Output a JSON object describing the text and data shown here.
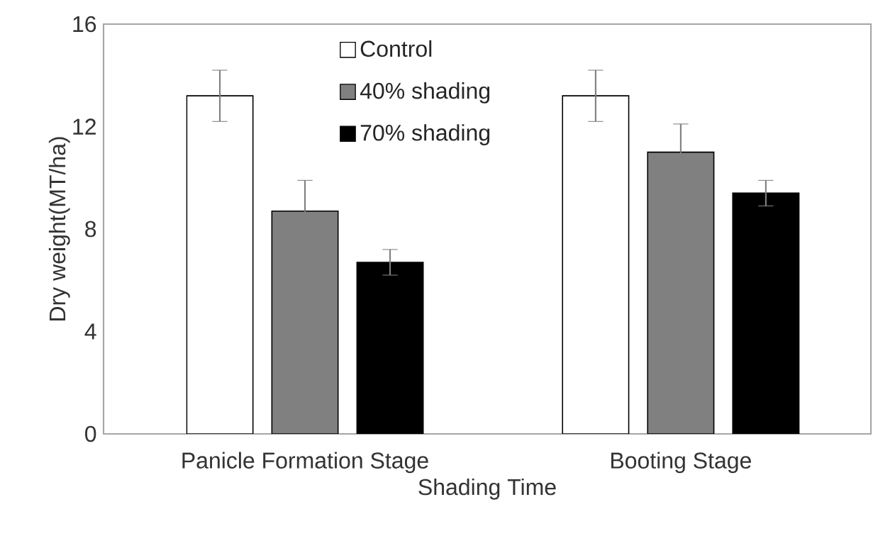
{
  "chart_data": {
    "type": "bar",
    "xlabel": "Shading Time",
    "ylabel": "Dry weight(MT/ha)",
    "categories": [
      "Panicle Formation Stage",
      "Booting Stage"
    ],
    "series": [
      {
        "name": "Control",
        "color": "#ffffff",
        "values": [
          13.2,
          13.2
        ],
        "errors": [
          1.0,
          1.0
        ]
      },
      {
        "name": "40% shading",
        "color": "#808080",
        "values": [
          8.7,
          11.0
        ],
        "errors": [
          1.2,
          1.1
        ]
      },
      {
        "name": "70% shading",
        "color": "#000000",
        "values": [
          6.7,
          9.4
        ],
        "errors": [
          0.5,
          0.5
        ]
      }
    ],
    "ylim": [
      0,
      16
    ],
    "yticks": [
      0,
      4,
      8,
      12,
      16
    ],
    "grid": false,
    "legend": "top"
  }
}
